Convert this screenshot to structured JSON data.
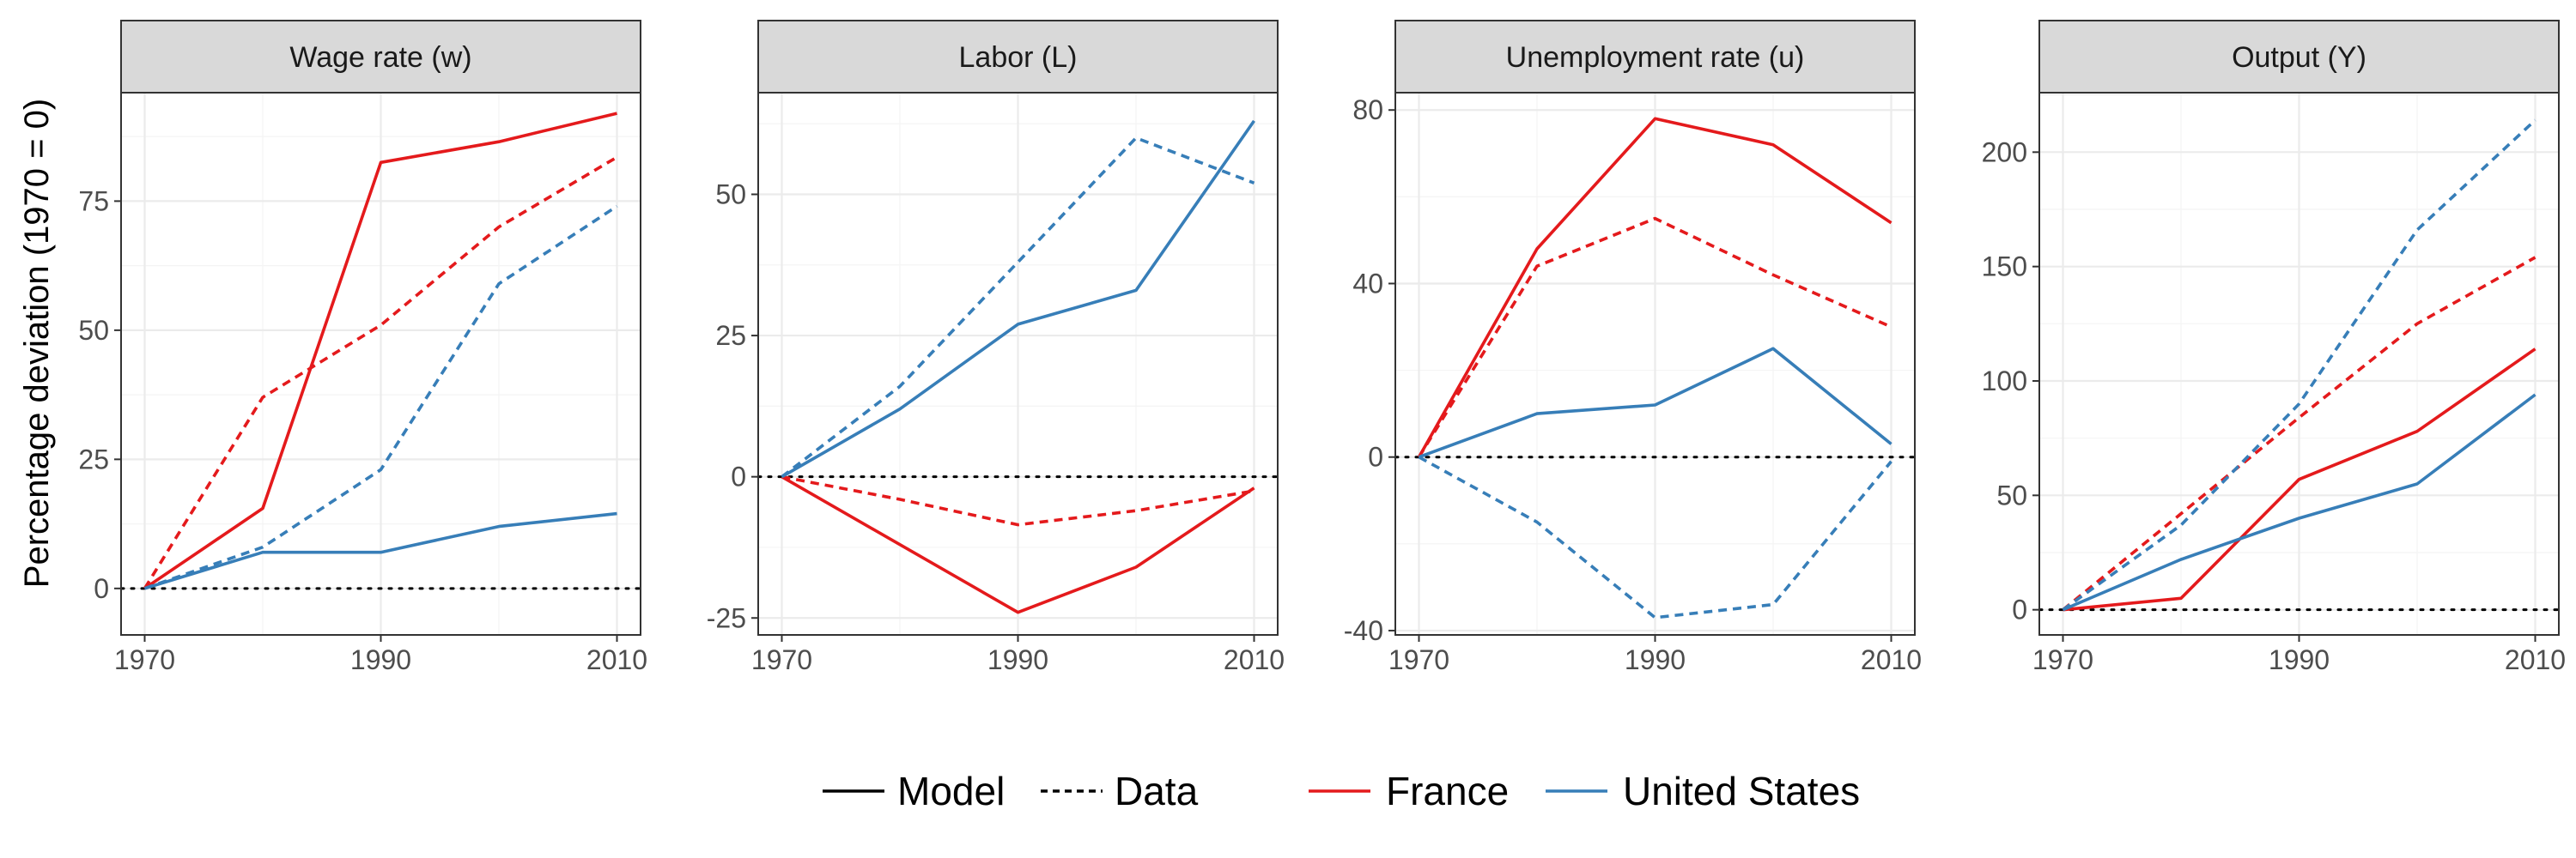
{
  "y_axis_title": "Percentage deviation (1970 = 0)",
  "colors": {
    "France": "#e41a1c",
    "United States": "#377eb8"
  },
  "legend": {
    "linetype": [
      {
        "label": "Model",
        "dash": "solid"
      },
      {
        "label": "Data",
        "dash": "dashed"
      }
    ],
    "color": [
      {
        "label": "France",
        "color": "#e41a1c"
      },
      {
        "label": "United States",
        "color": "#377eb8"
      }
    ]
  },
  "chart_data": [
    {
      "type": "line",
      "title": "Wage rate (w)",
      "x": [
        1970,
        1980,
        1990,
        2000,
        2010
      ],
      "xticks": [
        1970,
        1990,
        2010
      ],
      "xlim": [
        1968,
        2012
      ],
      "yticks": [
        0,
        25,
        50,
        75
      ],
      "ylim": [
        -9,
        96
      ],
      "series": [
        {
          "country": "France",
          "kind": "Model",
          "values": [
            0,
            15.5,
            82.5,
            86.5,
            92
          ]
        },
        {
          "country": "France",
          "kind": "Data",
          "values": [
            0,
            37,
            51,
            70,
            83.5
          ]
        },
        {
          "country": "United States",
          "kind": "Model",
          "values": [
            0,
            7,
            7,
            12,
            14.5
          ]
        },
        {
          "country": "United States",
          "kind": "Data",
          "values": [
            0,
            8,
            23,
            59,
            74
          ]
        }
      ]
    },
    {
      "type": "line",
      "title": "Labor (L)",
      "x": [
        1970,
        1980,
        1990,
        2000,
        2010
      ],
      "xticks": [
        1970,
        1990,
        2010
      ],
      "xlim": [
        1968,
        2012
      ],
      "yticks": [
        -25,
        0,
        25,
        50
      ],
      "ylim": [
        -28,
        68
      ],
      "series": [
        {
          "country": "France",
          "kind": "Model",
          "values": [
            0,
            -12,
            -24,
            -16,
            -2
          ]
        },
        {
          "country": "France",
          "kind": "Data",
          "values": [
            0,
            -4,
            -8.5,
            -6,
            -2.5
          ]
        },
        {
          "country": "United States",
          "kind": "Model",
          "values": [
            0,
            12,
            27,
            33,
            63
          ]
        },
        {
          "country": "United States",
          "kind": "Data",
          "values": [
            0,
            16,
            38,
            60,
            52
          ]
        }
      ]
    },
    {
      "type": "line",
      "title": "Unemployment rate (u)",
      "x": [
        1970,
        1980,
        1990,
        2000,
        2010
      ],
      "xticks": [
        1970,
        1990,
        2010
      ],
      "xlim": [
        1968,
        2012
      ],
      "yticks": [
        -40,
        0,
        40,
        80
      ],
      "ylim": [
        -41,
        84
      ],
      "series": [
        {
          "country": "France",
          "kind": "Model",
          "values": [
            0,
            48,
            78,
            72,
            54
          ]
        },
        {
          "country": "France",
          "kind": "Data",
          "values": [
            0,
            44,
            55,
            42,
            30
          ]
        },
        {
          "country": "United States",
          "kind": "Model",
          "values": [
            0,
            10,
            12,
            25,
            3
          ]
        },
        {
          "country": "United States",
          "kind": "Data",
          "values": [
            0,
            -15,
            -37,
            -34,
            -1
          ]
        }
      ]
    },
    {
      "type": "line",
      "title": "Output (Y)",
      "x": [
        1970,
        1980,
        1990,
        2000,
        2010
      ],
      "xticks": [
        1970,
        1990,
        2010
      ],
      "xlim": [
        1968,
        2012
      ],
      "yticks": [
        0,
        50,
        100,
        150,
        200
      ],
      "ylim": [
        -11,
        226
      ],
      "series": [
        {
          "country": "France",
          "kind": "Model",
          "values": [
            0,
            5,
            57,
            78,
            114
          ]
        },
        {
          "country": "France",
          "kind": "Data",
          "values": [
            0,
            42,
            84,
            125,
            154
          ]
        },
        {
          "country": "United States",
          "kind": "Model",
          "values": [
            0,
            22,
            40,
            55,
            94
          ]
        },
        {
          "country": "United States",
          "kind": "Data",
          "values": [
            0,
            37,
            90,
            166,
            214
          ]
        }
      ]
    }
  ]
}
